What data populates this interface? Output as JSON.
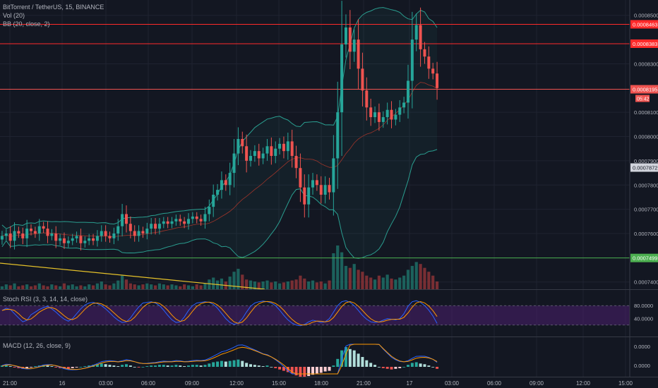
{
  "header": {
    "symbol_line": "BitTorrent / TetherUS, 15, BINANCE",
    "vol_label": "Vol (20)",
    "bb_label": "BB (20, close, 2)"
  },
  "stoch_label": "Stoch RSI (3, 3, 14, 14, close)",
  "macd_label": "MACD (12, 26, close, 9)",
  "colors": {
    "background": "#131722",
    "up": "#26a69a",
    "down": "#ef5350",
    "resistance": "#ff2a2a",
    "support": "#4caf50",
    "trendline": "#e6c229",
    "bb_band": "#2a9d8f",
    "stoch_band": "#4a1f6e",
    "macd_line": "#2962ff",
    "signal_line": "#ff9800"
  },
  "chart_data": {
    "type": "candlestick",
    "x_ticks": [
      "21:00",
      "16",
      "03:00",
      "06:00",
      "09:00",
      "12:00",
      "15:00",
      "18:00",
      "21:00",
      "17",
      "03:00",
      "06:00",
      "09:00",
      "12:00",
      "15:00"
    ],
    "price_axis": {
      "range": [
        0.000737,
        0.000854
      ],
      "ticks": [
        "0.0008500",
        "0.0008300",
        "0.0008100",
        "0.0008000",
        "0.0007900",
        "0.0007800",
        "0.0007700",
        "0.0007600",
        "0.0007400"
      ]
    },
    "horizontal_lines": [
      {
        "value": 0.0008463,
        "label": "0.0008463",
        "color": "#ff2a2a"
      },
      {
        "value": 0.0008383,
        "label": "0.0008383",
        "color": "#ff2a2a"
      },
      {
        "value": 0.0008195,
        "label": "0.0008195",
        "color": "#ef5350",
        "countdown": "05:42"
      },
      {
        "value": 0.0007499,
        "label": "0.0007499",
        "color": "#4caf50"
      }
    ],
    "ma_tag": "0.0007872",
    "stoch_axis": {
      "ticks": [
        "80.0000",
        "40.0000"
      ],
      "upper": 80,
      "lower": 20
    },
    "macd_axis": {
      "ticks": [
        "0.0000",
        "0.0000"
      ]
    },
    "closes": [
      0.000759,
      0.00076,
      0.000757,
      0.000761,
      0.00076,
      0.000758,
      0.000762,
      0.000761,
      0.00076,
      0.000763,
      0.000762,
      0.000759,
      0.00076,
      0.000757,
      0.000758,
      0.000756,
      0.000757,
      0.000758,
      0.000759,
      0.000756,
      0.000757,
      0.000758,
      0.000757,
      0.000759,
      0.000761,
      0.000759,
      0.000758,
      0.00076,
      0.000763,
      0.000768,
      0.000764,
      0.000761,
      0.000759,
      0.000761,
      0.00076,
      0.000762,
      0.000764,
      0.000762,
      0.000764,
      0.000765,
      0.000764,
      0.000765,
      0.000766,
      0.000765,
      0.000764,
      0.000766,
      0.000767,
      0.000766,
      0.000765,
      0.000768,
      0.000771,
      0.000776,
      0.000778,
      0.000782,
      0.00078,
      0.000785,
      0.000793,
      0.000799,
      0.000796,
      0.00079,
      0.000792,
      0.000794,
      0.000791,
      0.000793,
      0.000796,
      0.000792,
      0.000795,
      0.000797,
      0.000794,
      0.000798,
      0.000792,
      0.000787,
      0.000779,
      0.000772,
      0.000779,
      0.000782,
      0.00078,
      0.000776,
      0.00078,
      0.000777,
      0.000791,
      0.00081,
      0.000838,
      0.000845,
      0.000835,
      0.00084,
      0.000828,
      0.000819,
      0.000812,
      0.000808,
      0.00081,
      0.000806,
      0.000808,
      0.000811,
      0.000807,
      0.000809,
      0.000812,
      0.000814,
      0.000823,
      0.00084,
      0.000846,
      0.000836,
      0.000833,
      0.000828,
      0.000826,
      0.00082
    ],
    "stoch_k": [
      65,
      72,
      68,
      55,
      42,
      30,
      35,
      52,
      60,
      68,
      74,
      78,
      70,
      60,
      48,
      38,
      32,
      40,
      55,
      70,
      82,
      88,
      90,
      86,
      80,
      70,
      58,
      45,
      35,
      28,
      30,
      42,
      60,
      76,
      88,
      90,
      92,
      88,
      80,
      66,
      50,
      36,
      28,
      30,
      45,
      65,
      80,
      88,
      90,
      92,
      90,
      84,
      72,
      56,
      40,
      28,
      22,
      26,
      40,
      60,
      78,
      88,
      92,
      94,
      92,
      88,
      80,
      66,
      50,
      36,
      26,
      20,
      18,
      22,
      30,
      35,
      32,
      28,
      30,
      40,
      60,
      80,
      92,
      95,
      90,
      80,
      65,
      50,
      38,
      30,
      28,
      30,
      35,
      40,
      38,
      36,
      40,
      55,
      78,
      92,
      95,
      90,
      80,
      66,
      48,
      25
    ],
    "macd_hist": [
      0.2,
      0.3,
      0.1,
      -0.1,
      -0.2,
      -0.3,
      -0.2,
      -0.1,
      0.1,
      0.2,
      0.3,
      0.2,
      0.1,
      -0.1,
      -0.2,
      -0.3,
      -0.3,
      -0.2,
      -0.1,
      0.0,
      0.1,
      0.2,
      0.3,
      0.4,
      0.5,
      0.4,
      0.3,
      0.2,
      0.1,
      0.3,
      0.4,
      0.2,
      0.0,
      -0.1,
      0.0,
      0.1,
      0.2,
      0.2,
      0.3,
      0.3,
      0.2,
      0.2,
      0.3,
      0.2,
      0.1,
      0.2,
      0.3,
      0.3,
      0.2,
      0.3,
      0.5,
      0.7,
      0.8,
      0.9,
      0.8,
      0.9,
      1.0,
      1.1,
      0.9,
      0.6,
      0.4,
      0.3,
      0.2,
      0.1,
      0.2,
      0.0,
      -0.2,
      -0.4,
      -0.6,
      -0.8,
      -1.0,
      -1.3,
      -1.5,
      -1.6,
      -1.4,
      -1.2,
      -1.0,
      -0.9,
      -0.7,
      -0.6,
      0.2,
      1.2,
      2.5,
      3.0,
      2.7,
      2.5,
      2.0,
      1.5,
      1.0,
      0.6,
      0.3,
      0.0,
      -0.2,
      -0.3,
      -0.4,
      -0.3,
      -0.2,
      0.0,
      0.3,
      0.6,
      0.7,
      0.5,
      0.4,
      0.2,
      0.0,
      -0.3
    ],
    "volumes": [
      3,
      5,
      4,
      6,
      3,
      4,
      5,
      3,
      4,
      6,
      4,
      3,
      5,
      4,
      3,
      6,
      4,
      5,
      3,
      4,
      3,
      5,
      4,
      6,
      8,
      5,
      4,
      6,
      9,
      14,
      10,
      6,
      5,
      4,
      5,
      6,
      5,
      4,
      6,
      5,
      4,
      5,
      4,
      3,
      5,
      4,
      3,
      5,
      4,
      6,
      10,
      12,
      9,
      11,
      8,
      13,
      18,
      21,
      15,
      10,
      9,
      8,
      7,
      8,
      9,
      7,
      8,
      6,
      7,
      8,
      9,
      10,
      14,
      11,
      8,
      9,
      7,
      8,
      6,
      9,
      37,
      45,
      38,
      24,
      22,
      26,
      20,
      18,
      14,
      12,
      10,
      14,
      12,
      15,
      11,
      10,
      12,
      14,
      20,
      24,
      28,
      26,
      22,
      18,
      14,
      8
    ]
  }
}
